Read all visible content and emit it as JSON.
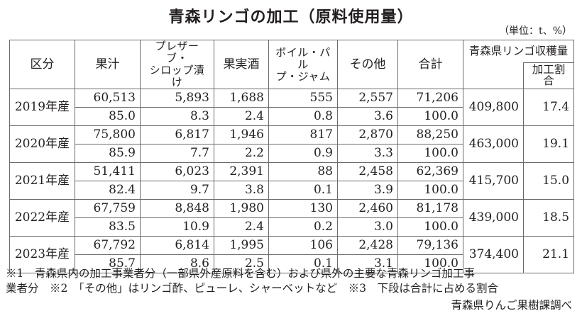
{
  "title": "青森リンゴの加工（原料使用量）",
  "unit": "（単位：t、%）",
  "header": {
    "category": "区分",
    "juice": "果汁",
    "preserve_line1": "プレザーブ・",
    "preserve_line2": "シロップ漬け",
    "cider": "果実酒",
    "boiled_line1": "ボイル・パル",
    "boiled_line2": "プ・ジャム",
    "other": "その他",
    "total": "合計",
    "harvest": "青森県リンゴ収穫量",
    "ratio": "加工割合"
  },
  "rows": [
    {
      "year": "2019年産",
      "amount": [
        "60,513",
        "5,893",
        "1,688",
        "555",
        "2,557",
        "71,206"
      ],
      "share": [
        "85.0",
        "8.3",
        "2.4",
        "0.8",
        "3.6",
        "100.0"
      ],
      "harvest": "409,800",
      "ratio": "17.4"
    },
    {
      "year": "2020年産",
      "amount": [
        "75,800",
        "6,817",
        "1,946",
        "817",
        "2,870",
        "88,250"
      ],
      "share": [
        "85.9",
        "7.7",
        "2.2",
        "0.9",
        "3.3",
        "100.0"
      ],
      "harvest": "463,000",
      "ratio": "19.1"
    },
    {
      "year": "2021年産",
      "amount": [
        "51,411",
        "6,023",
        "2,391",
        "88",
        "2,458",
        "62,369"
      ],
      "share": [
        "82.4",
        "9.7",
        "3.8",
        "0.1",
        "3.9",
        "100.0"
      ],
      "harvest": "415,700",
      "ratio": "15.0"
    },
    {
      "year": "2022年産",
      "amount": [
        "67,759",
        "8,848",
        "1,980",
        "130",
        "2,460",
        "81,178"
      ],
      "share": [
        "83.5",
        "10.9",
        "2.4",
        "0.2",
        "3.0",
        "100.0"
      ],
      "harvest": "439,000",
      "ratio": "18.5"
    },
    {
      "year": "2023年産",
      "amount": [
        "67,792",
        "6,814",
        "1,995",
        "106",
        "2,428",
        "79,136"
      ],
      "share": [
        "85.7",
        "8.6",
        "2.5",
        "0.1",
        "3.1",
        "100.0"
      ],
      "harvest": "374,400",
      "ratio": "21.1"
    }
  ],
  "notes": {
    "line1": "※1　青森県内の加工事業者分（一部県外産原料を含む）および県外の主要な青森リンゴ加工事",
    "line2": "業者分　※2　「その他」はリンゴ酢、ピューレ、シャーベットなど　※3　下段は合計に占める割合",
    "source": "青森県りんご果樹課調べ"
  }
}
